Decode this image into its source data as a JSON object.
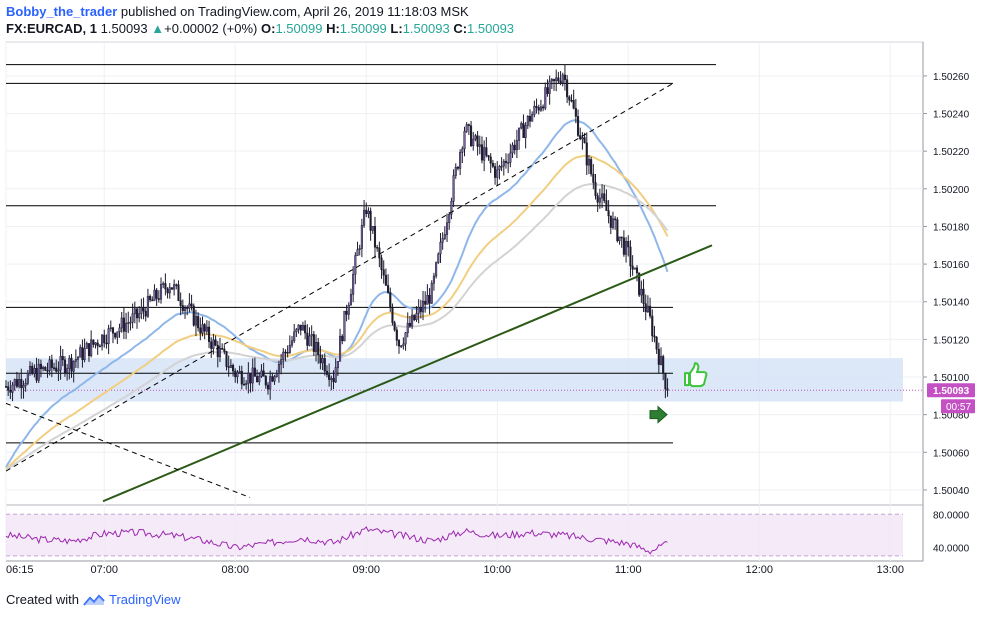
{
  "header": {
    "author": "Bobby_the_trader",
    "published_text": "published on TradingView.com, April 26, 2019 11:18:03 MSK",
    "symbol": "FX:EURCAD, 1",
    "last": "1.50093",
    "change_arrow": "▲",
    "change": "+0.00002 (+0%)",
    "o_label": "O:",
    "o": "1.50099",
    "h_label": "H:",
    "h": "1.50099",
    "l_label": "L:",
    "l": "1.50093",
    "c_label": "C:",
    "c": "1.50093"
  },
  "footer": {
    "created_with": "Created with",
    "brand": "TradingView"
  },
  "colors": {
    "up": "#26a69a",
    "accent": "#2962ff",
    "price_tag": "#c451c4",
    "ema_fast": "#8fb7ea",
    "ema_mid": "#f1ce82",
    "ema_slow": "#d3d3d3",
    "trendline": "#2b5a16",
    "zone": "#d6e4f7",
    "rsi": "#9c27b0"
  },
  "icons": [
    "thumbs-up-icon",
    "arrow-right-icon",
    "tradingview-logo-icon"
  ],
  "chart_data": {
    "type": "line",
    "title": "",
    "x": [
      "06:15",
      "06:30",
      "06:45",
      "07:00",
      "07:15",
      "07:30",
      "07:45",
      "08:00",
      "08:15",
      "08:30",
      "08:45",
      "09:00",
      "09:15",
      "09:30",
      "09:45",
      "10:00",
      "10:15",
      "10:30",
      "10:45",
      "11:00",
      "11:10",
      "11:18"
    ],
    "series": [
      {
        "values": [
          1.50095,
          1.50103,
          1.50108,
          1.50122,
          1.50132,
          1.5015,
          1.50125,
          1.50102,
          1.50098,
          1.50127,
          1.501,
          1.5019,
          1.50118,
          1.50145,
          1.50232,
          1.50208,
          1.50238,
          1.50262,
          1.502,
          1.50165,
          1.5013,
          1.50093
        ]
      }
    ],
    "ylim": [
      1.50032,
      1.50278
    ],
    "y_ticks": [
      "1.50260",
      "1.50240",
      "1.50220",
      "1.50200",
      "1.50180",
      "1.50160",
      "1.50140",
      "1.50120",
      "1.50100",
      "1.50080",
      "1.50060",
      "1.50040"
    ],
    "x_ticks": [
      "06:15",
      "07:00",
      "08:00",
      "09:00",
      "10:00",
      "11:00",
      "12:00",
      "13:00"
    ],
    "price_label": "1.50093",
    "countdown_label": "00:57",
    "horizontal_levels": [
      1.50266,
      1.50256,
      1.50191,
      1.50137,
      1.50102,
      1.50065
    ],
    "support_zone": [
      1.50087,
      1.5011
    ],
    "rsi": {
      "y_ticks": [
        "80.0000",
        "40.0000"
      ],
      "values": [
        55,
        50,
        48,
        57,
        58,
        55,
        49,
        40,
        45,
        52,
        46,
        62,
        55,
        48,
        60,
        54,
        58,
        55,
        50,
        45,
        36,
        44
      ]
    },
    "grid": true
  }
}
